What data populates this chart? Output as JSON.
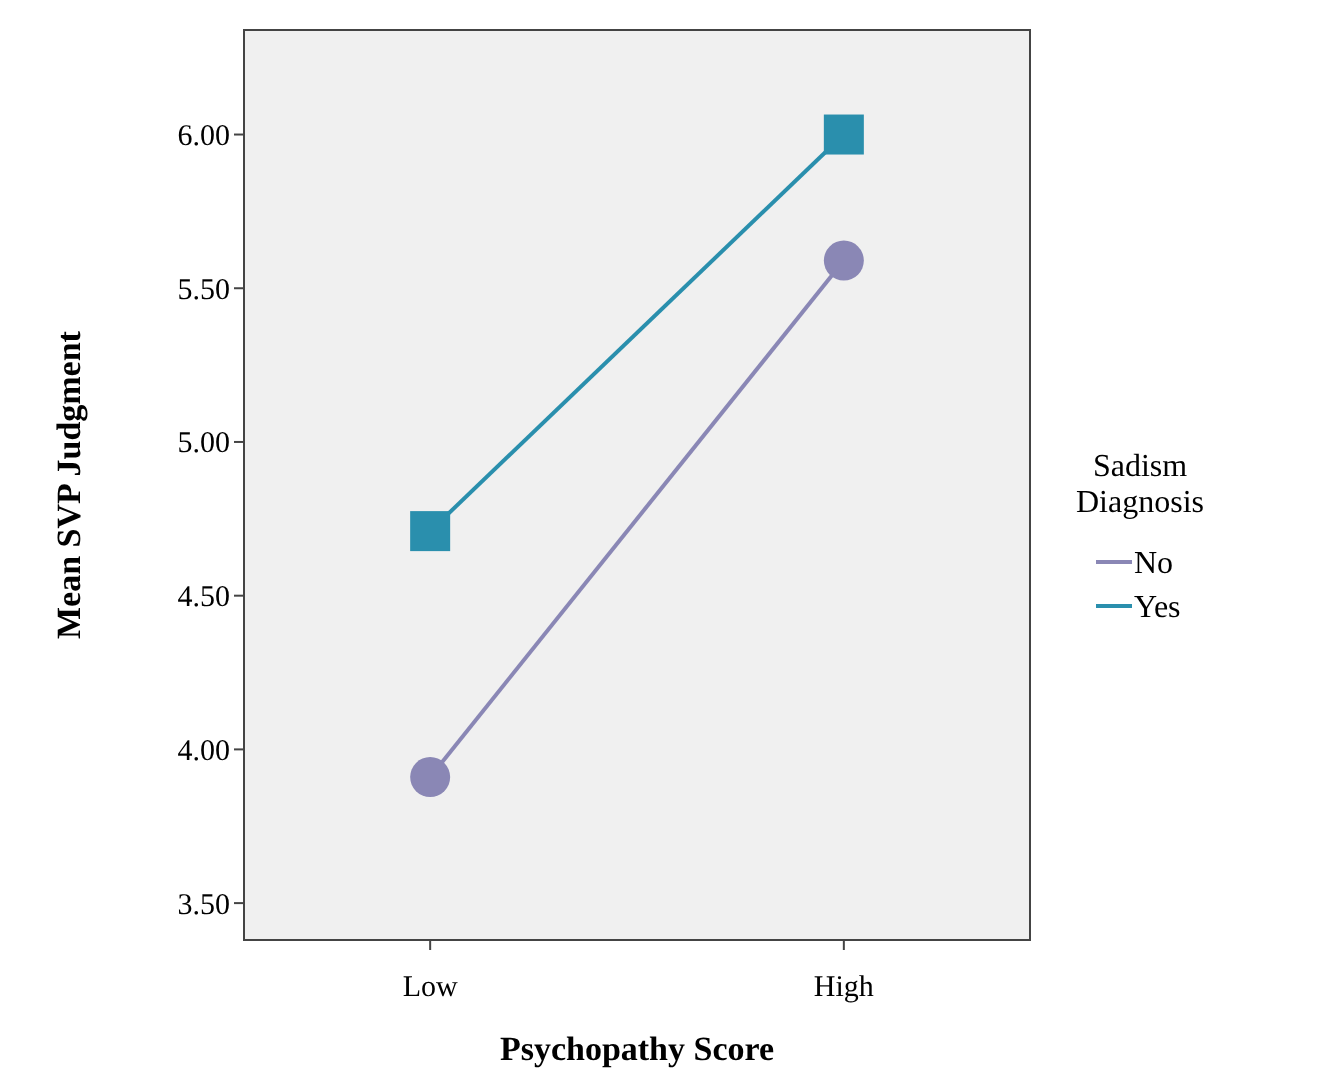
{
  "chart_data": {
    "type": "line",
    "xlabel": "Psychopathy Score",
    "ylabel": "Mean SVP Judgment",
    "legend_title": "Sadism Diagnosis",
    "categories": [
      "Low",
      "High"
    ],
    "series": [
      {
        "name": "No",
        "color": "#8a87b5",
        "values": [
          3.91,
          5.59
        ],
        "marker": "circle"
      },
      {
        "name": "Yes",
        "color": "#2a8fad",
        "values": [
          4.71,
          6.0
        ],
        "marker": "square"
      }
    ],
    "ylim": [
      3.38,
      6.34
    ],
    "yticks": [
      {
        "value": 3.5,
        "label": "3.50"
      },
      {
        "value": 4,
        "label": "4.00"
      },
      {
        "value": 4.5,
        "label": "4.50"
      },
      {
        "value": 5,
        "label": "5.00"
      },
      {
        "value": 5.5,
        "label": "5.50"
      },
      {
        "value": 6,
        "label": "6.00"
      }
    ],
    "grid": false,
    "legend": "right",
    "line_style": "solid"
  }
}
